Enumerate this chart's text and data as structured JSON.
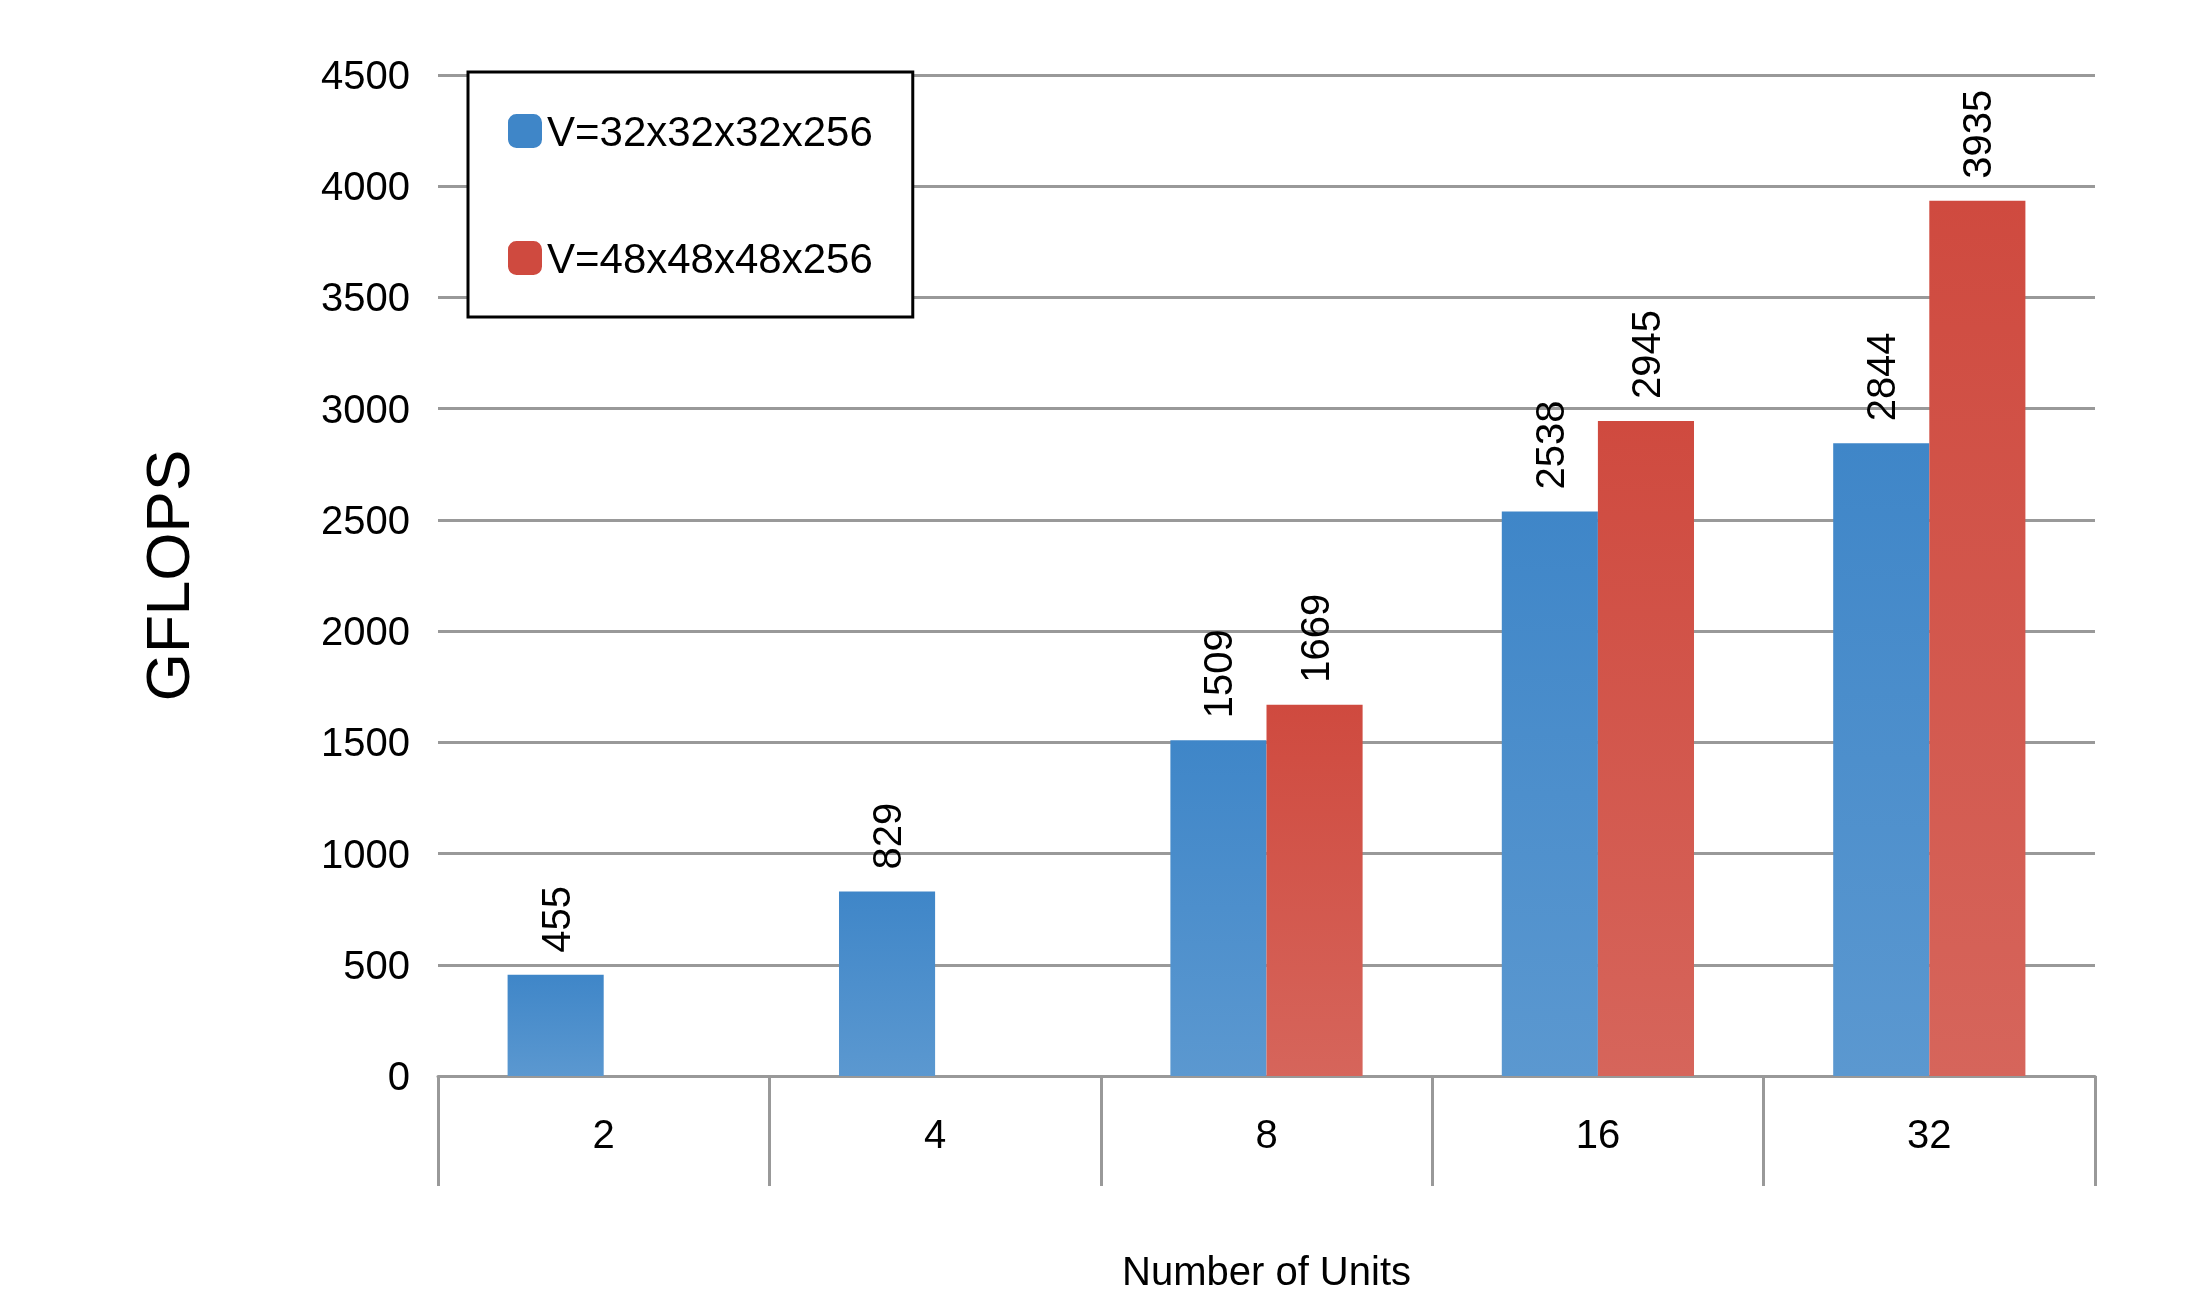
{
  "chart_data": {
    "type": "bar",
    "xlabel": "Number of Units",
    "ylabel": "GFLOPS",
    "categories": [
      "2",
      "4",
      "8",
      "16",
      "32"
    ],
    "series": [
      {
        "name": "V=32x32x32x256",
        "color": "#3f86c8",
        "values": [
          455,
          829,
          1509,
          2538,
          2844
        ]
      },
      {
        "name": "V=48x48x48x256",
        "color": "#cf4a3f",
        "values": [
          null,
          null,
          1669,
          2945,
          3935
        ]
      }
    ],
    "ylim": [
      0,
      4500
    ],
    "yticks": [
      0,
      500,
      1000,
      1500,
      2000,
      2500,
      3000,
      3500,
      4000,
      4500
    ],
    "grid": "y",
    "legend": "top left",
    "data_labels": true
  }
}
